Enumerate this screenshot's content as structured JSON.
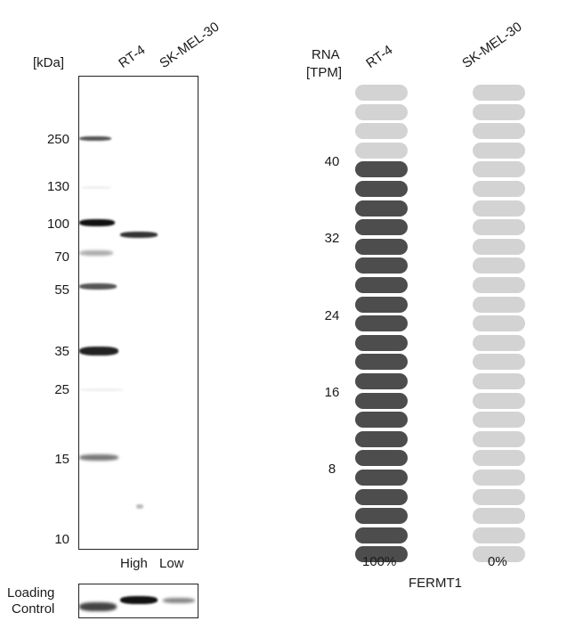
{
  "western_blot": {
    "unit_label": "[kDa]",
    "lanes": [
      {
        "label": "RT-4"
      },
      {
        "label": "SK-MEL-30"
      }
    ],
    "markers": [
      "250",
      "130",
      "100",
      "70",
      "55",
      "35",
      "25",
      "15",
      "10"
    ],
    "expression_labels": [
      "High",
      "Low"
    ],
    "loading_control_label": "Loading\nControl"
  },
  "rna_panel": {
    "axis_title_line1": "RNA",
    "axis_title_line2": "[TPM]",
    "samples": [
      {
        "label": "RT-4",
        "percent": "100%",
        "filled_fraction": 0.84
      },
      {
        "label": "SK-MEL-30",
        "percent": "0%",
        "filled_fraction": 0.0
      }
    ],
    "ticks": [
      "40",
      "32",
      "24",
      "16",
      "8"
    ],
    "gene": "FERMT1",
    "colors": {
      "filled": "#4d4d4d",
      "empty": "#d3d3d3"
    }
  }
}
